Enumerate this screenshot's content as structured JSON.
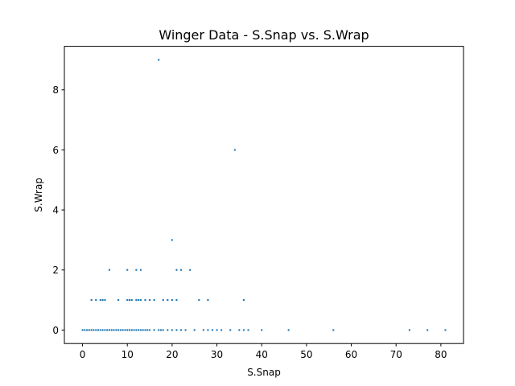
{
  "chart_data": {
    "type": "scatter",
    "title": "Winger Data - S.Snap vs. S.Wrap",
    "xlabel": "S.Snap",
    "ylabel": "S.Wrap",
    "xlim": [
      -4.05,
      85.05
    ],
    "ylim": [
      -0.45,
      9.45
    ],
    "xticks": [
      0,
      10,
      20,
      30,
      40,
      50,
      60,
      70,
      80
    ],
    "yticks": [
      0,
      2,
      4,
      6,
      8
    ],
    "grid": false,
    "legend": "none",
    "marker_color": "#1f77b4",
    "points": [
      {
        "x": 0,
        "y": 0
      },
      {
        "x": 0.5,
        "y": 0
      },
      {
        "x": 1,
        "y": 0
      },
      {
        "x": 1.5,
        "y": 0
      },
      {
        "x": 2,
        "y": 0
      },
      {
        "x": 2.5,
        "y": 0
      },
      {
        "x": 3,
        "y": 0
      },
      {
        "x": 3.5,
        "y": 0
      },
      {
        "x": 4,
        "y": 0
      },
      {
        "x": 4.5,
        "y": 0
      },
      {
        "x": 5,
        "y": 0
      },
      {
        "x": 5.5,
        "y": 0
      },
      {
        "x": 6,
        "y": 0
      },
      {
        "x": 6.5,
        "y": 0
      },
      {
        "x": 7,
        "y": 0
      },
      {
        "x": 7.5,
        "y": 0
      },
      {
        "x": 8,
        "y": 0
      },
      {
        "x": 8.5,
        "y": 0
      },
      {
        "x": 9,
        "y": 0
      },
      {
        "x": 9.5,
        "y": 0
      },
      {
        "x": 10,
        "y": 0
      },
      {
        "x": 10.5,
        "y": 0
      },
      {
        "x": 11,
        "y": 0
      },
      {
        "x": 11.5,
        "y": 0
      },
      {
        "x": 12,
        "y": 0
      },
      {
        "x": 12.5,
        "y": 0
      },
      {
        "x": 13,
        "y": 0
      },
      {
        "x": 13.5,
        "y": 0
      },
      {
        "x": 14,
        "y": 0
      },
      {
        "x": 14.5,
        "y": 0
      },
      {
        "x": 15,
        "y": 0
      },
      {
        "x": 16,
        "y": 0
      },
      {
        "x": 17,
        "y": 0
      },
      {
        "x": 17.5,
        "y": 0
      },
      {
        "x": 18,
        "y": 0
      },
      {
        "x": 19,
        "y": 0
      },
      {
        "x": 20,
        "y": 0
      },
      {
        "x": 21,
        "y": 0
      },
      {
        "x": 22,
        "y": 0
      },
      {
        "x": 23,
        "y": 0
      },
      {
        "x": 25,
        "y": 0
      },
      {
        "x": 27,
        "y": 0
      },
      {
        "x": 28,
        "y": 0
      },
      {
        "x": 29,
        "y": 0
      },
      {
        "x": 30,
        "y": 0
      },
      {
        "x": 31,
        "y": 0
      },
      {
        "x": 33,
        "y": 0
      },
      {
        "x": 35,
        "y": 0
      },
      {
        "x": 36,
        "y": 0
      },
      {
        "x": 37,
        "y": 0
      },
      {
        "x": 40,
        "y": 0
      },
      {
        "x": 46,
        "y": 0
      },
      {
        "x": 56,
        "y": 0
      },
      {
        "x": 73,
        "y": 0
      },
      {
        "x": 77,
        "y": 0
      },
      {
        "x": 81,
        "y": 0
      },
      {
        "x": 2,
        "y": 1
      },
      {
        "x": 3,
        "y": 1
      },
      {
        "x": 4,
        "y": 1
      },
      {
        "x": 4.5,
        "y": 1
      },
      {
        "x": 5,
        "y": 1
      },
      {
        "x": 8,
        "y": 1
      },
      {
        "x": 10,
        "y": 1
      },
      {
        "x": 10.5,
        "y": 1
      },
      {
        "x": 11,
        "y": 1
      },
      {
        "x": 12,
        "y": 1
      },
      {
        "x": 12.5,
        "y": 1
      },
      {
        "x": 13,
        "y": 1
      },
      {
        "x": 14,
        "y": 1
      },
      {
        "x": 15,
        "y": 1
      },
      {
        "x": 16,
        "y": 1
      },
      {
        "x": 18,
        "y": 1
      },
      {
        "x": 19,
        "y": 1
      },
      {
        "x": 20,
        "y": 1
      },
      {
        "x": 21,
        "y": 1
      },
      {
        "x": 26,
        "y": 1
      },
      {
        "x": 28,
        "y": 1
      },
      {
        "x": 36,
        "y": 1
      },
      {
        "x": 6,
        "y": 2
      },
      {
        "x": 10,
        "y": 2
      },
      {
        "x": 12,
        "y": 2
      },
      {
        "x": 13,
        "y": 2
      },
      {
        "x": 21,
        "y": 2
      },
      {
        "x": 22,
        "y": 2
      },
      {
        "x": 24,
        "y": 2
      },
      {
        "x": 20,
        "y": 3
      },
      {
        "x": 34,
        "y": 6
      },
      {
        "x": 17,
        "y": 9
      }
    ]
  }
}
